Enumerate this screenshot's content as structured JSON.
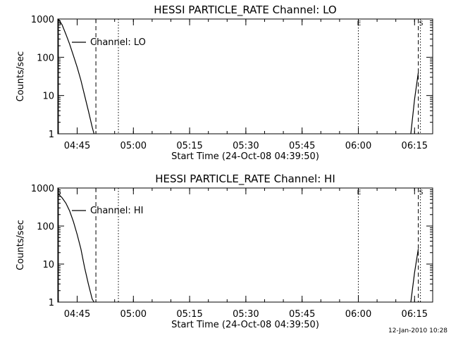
{
  "page": {
    "footer_timestamp": "12-Jan-2010 10:28"
  },
  "chart_data": [
    {
      "type": "line",
      "title": "HESSI PARTICLE_RATE Channel: LO",
      "xlabel": "Start Time (24-Oct-08 04:39:50)",
      "ylabel": "Counts/sec",
      "yscale": "log",
      "ylim": [
        1,
        1000
      ],
      "xlim_minutes": [
        0,
        100
      ],
      "x_ticks": [
        "04:45",
        "05:00",
        "05:15",
        "05:30",
        "05:45",
        "06:00",
        "06:15"
      ],
      "y_ticks": [
        "1",
        "10",
        "100",
        "1000"
      ],
      "legend_label": "Channel: LO",
      "grid": false,
      "markers": [
        {
          "label": "S",
          "time": "04:40",
          "style": "solid"
        },
        {
          "label": "",
          "time": "04:50",
          "style": "dashed"
        },
        {
          "label": "",
          "time": "04:56",
          "style": "dotted"
        },
        {
          "label": "E",
          "time": "06:00",
          "style": "dotted"
        },
        {
          "label": "",
          "time": "06:16",
          "style": "dashed"
        },
        {
          "label": "S",
          "time": "06:16",
          "style": "dotted"
        }
      ],
      "series": [
        {
          "segments": [
            [
              [
                "04:40",
                1000
              ],
              [
                "04:41",
                700
              ],
              [
                "04:42",
                400
              ],
              [
                "04:43",
                220
              ],
              [
                "04:44",
                110
              ],
              [
                "04:45",
                55
              ],
              [
                "04:46",
                25
              ],
              [
                "04:47",
                10
              ],
              [
                "04:48",
                4
              ],
              [
                "04:49",
                1.5
              ],
              [
                "04:49:30",
                1
              ]
            ],
            [
              [
                "06:14",
                1
              ],
              [
                "06:15",
                8
              ],
              [
                "06:16",
                40
              ]
            ]
          ]
        }
      ]
    },
    {
      "type": "line",
      "title": "HESSI PARTICLE_RATE Channel: HI",
      "xlabel": "Start Time (24-Oct-08 04:39:50)",
      "ylabel": "Counts/sec",
      "yscale": "log",
      "ylim": [
        1,
        1000
      ],
      "xlim_minutes": [
        0,
        100
      ],
      "x_ticks": [
        "04:45",
        "05:00",
        "05:15",
        "05:30",
        "05:45",
        "06:00",
        "06:15"
      ],
      "y_ticks": [
        "1",
        "10",
        "100",
        "1000"
      ],
      "legend_label": "Channel: HI",
      "grid": false,
      "markers": [
        {
          "label": "S",
          "time": "04:40",
          "style": "solid"
        },
        {
          "label": "",
          "time": "04:50",
          "style": "dashed"
        },
        {
          "label": "",
          "time": "04:56",
          "style": "dotted"
        },
        {
          "label": "E",
          "time": "06:00",
          "style": "dotted"
        },
        {
          "label": "",
          "time": "06:16",
          "style": "dashed"
        },
        {
          "label": "S",
          "time": "06:16",
          "style": "dotted"
        }
      ],
      "series": [
        {
          "segments": [
            [
              [
                "04:40",
                700
              ],
              [
                "04:41",
                550
              ],
              [
                "04:42",
                400
              ],
              [
                "04:43",
                250
              ],
              [
                "04:44",
                130
              ],
              [
                "04:45",
                60
              ],
              [
                "04:46",
                25
              ],
              [
                "04:47",
                8
              ],
              [
                "04:48",
                3
              ],
              [
                "04:49",
                1.2
              ],
              [
                "04:49:30",
                1
              ]
            ],
            [
              [
                "06:14",
                1
              ],
              [
                "06:15",
                6
              ],
              [
                "06:16",
                25
              ]
            ]
          ]
        }
      ]
    }
  ]
}
